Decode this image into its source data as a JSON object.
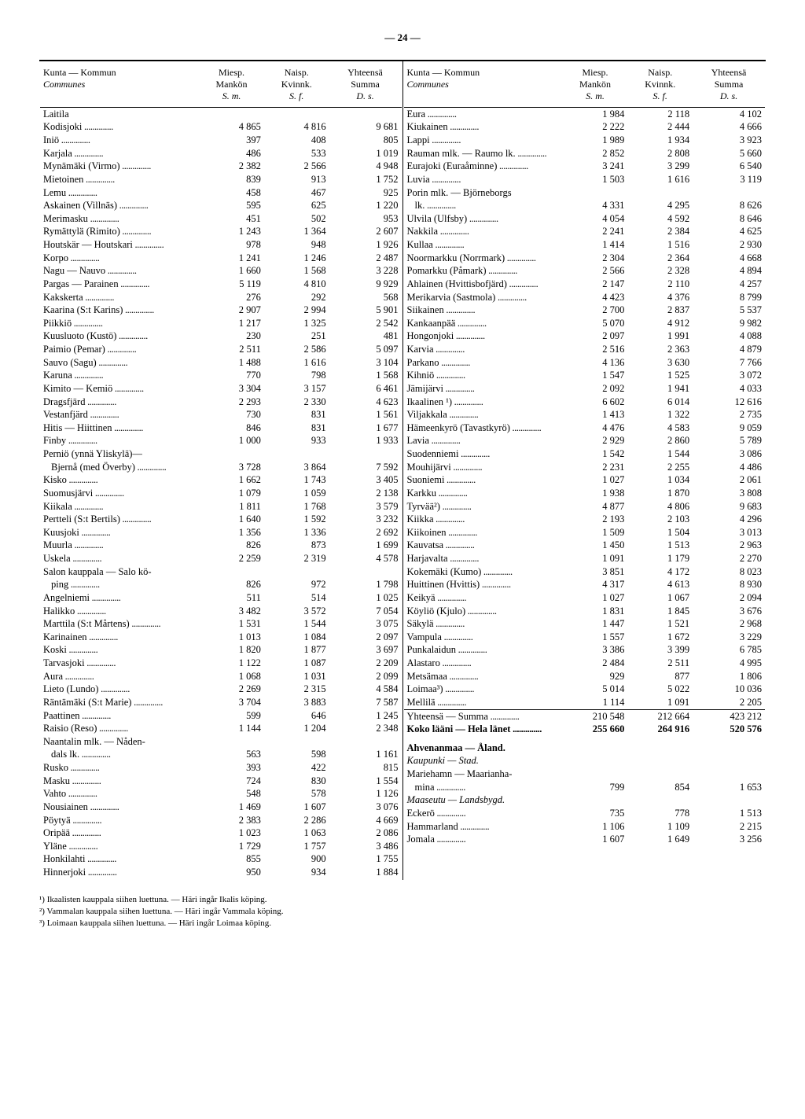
{
  "page_number": "— 24 —",
  "headers": {
    "col1": "Kunta — Kommun",
    "col1_sub": "Communes",
    "col2a": "Miesp.",
    "col2b": "Mankön",
    "col2c": "S. m.",
    "col3a": "Naisp.",
    "col3b": "Kvinnk.",
    "col3c": "S. f.",
    "col4a": "Yhteensä",
    "col4b": "Summa",
    "col4c": "D. s."
  },
  "left_rows": [
    {
      "n": "Laitila",
      "indent": 0,
      "m": "",
      "f": "",
      "t": ""
    },
    {
      "n": "Kodisjoki",
      "indent": 0,
      "m": "4 865",
      "f": "4 816",
      "t": "9 681",
      "brace": true
    },
    {
      "n": "Iniö",
      "indent": 0,
      "m": "397",
      "f": "408",
      "t": "805"
    },
    {
      "n": "Karjala",
      "indent": 0,
      "m": "486",
      "f": "533",
      "t": "1 019"
    },
    {
      "n": "Mynämäki (Virmo)",
      "indent": 0,
      "m": "2 382",
      "f": "2 566",
      "t": "4 948"
    },
    {
      "n": "Mietoinen",
      "indent": 0,
      "m": "839",
      "f": "913",
      "t": "1 752"
    },
    {
      "n": "Lemu",
      "indent": 0,
      "m": "458",
      "f": "467",
      "t": "925"
    },
    {
      "n": "Askainen (Villnäs)",
      "indent": 0,
      "m": "595",
      "f": "625",
      "t": "1 220"
    },
    {
      "n": "Merimasku",
      "indent": 0,
      "m": "451",
      "f": "502",
      "t": "953"
    },
    {
      "n": "Rymättylä (Rimito)",
      "indent": 0,
      "m": "1 243",
      "f": "1 364",
      "t": "2 607"
    },
    {
      "n": "Houtskär — Houtskari",
      "indent": 0,
      "m": "978",
      "f": "948",
      "t": "1 926"
    },
    {
      "n": "Korpo",
      "indent": 0,
      "m": "1 241",
      "f": "1 246",
      "t": "2 487"
    },
    {
      "n": "Nagu — Nauvo",
      "indent": 0,
      "m": "1 660",
      "f": "1 568",
      "t": "3 228"
    },
    {
      "n": "Pargas — Parainen",
      "indent": 0,
      "m": "5 119",
      "f": "4 810",
      "t": "9 929"
    },
    {
      "n": "Kakskerta",
      "indent": 0,
      "m": "276",
      "f": "292",
      "t": "568"
    },
    {
      "n": "Kaarina (S:t Karins)",
      "indent": 0,
      "m": "2 907",
      "f": "2 994",
      "t": "5 901"
    },
    {
      "n": "Piikkiö",
      "indent": 0,
      "m": "1 217",
      "f": "1 325",
      "t": "2 542"
    },
    {
      "n": "Kuusluoto (Kustö)",
      "indent": 0,
      "m": "230",
      "f": "251",
      "t": "481"
    },
    {
      "n": "Paimio (Pemar)",
      "indent": 0,
      "m": "2 511",
      "f": "2 586",
      "t": "5 097"
    },
    {
      "n": "Sauvo (Sagu)",
      "indent": 0,
      "m": "1 488",
      "f": "1 616",
      "t": "3 104"
    },
    {
      "n": "Karuna",
      "indent": 0,
      "m": "770",
      "f": "798",
      "t": "1 568"
    },
    {
      "n": "Kimito — Kemiö",
      "indent": 0,
      "m": "3 304",
      "f": "3 157",
      "t": "6 461"
    },
    {
      "n": "Dragsfjärd",
      "indent": 0,
      "m": "2 293",
      "f": "2 330",
      "t": "4 623"
    },
    {
      "n": "Vestanfjärd",
      "indent": 0,
      "m": "730",
      "f": "831",
      "t": "1 561"
    },
    {
      "n": "Hitis — Hiittinen",
      "indent": 0,
      "m": "846",
      "f": "831",
      "t": "1 677"
    },
    {
      "n": "Finby",
      "indent": 0,
      "m": "1 000",
      "f": "933",
      "t": "1 933"
    },
    {
      "n": "Perniö (ynnä Yliskylä)—",
      "indent": 0,
      "m": "",
      "f": "",
      "t": ""
    },
    {
      "n": "Bjernå (med Överby)",
      "indent": 1,
      "m": "3 728",
      "f": "3 864",
      "t": "7 592"
    },
    {
      "n": "Kisko",
      "indent": 0,
      "m": "1 662",
      "f": "1 743",
      "t": "3 405"
    },
    {
      "n": "Suomusjärvi",
      "indent": 0,
      "m": "1 079",
      "f": "1 059",
      "t": "2 138"
    },
    {
      "n": "Kiikala",
      "indent": 0,
      "m": "1 811",
      "f": "1 768",
      "t": "3 579"
    },
    {
      "n": "Pertteli (S:t Bertils)",
      "indent": 0,
      "m": "1 640",
      "f": "1 592",
      "t": "3 232"
    },
    {
      "n": "Kuusjoki",
      "indent": 0,
      "m": "1 356",
      "f": "1 336",
      "t": "2 692"
    },
    {
      "n": "Muurla",
      "indent": 0,
      "m": "826",
      "f": "873",
      "t": "1 699"
    },
    {
      "n": "Uskela",
      "indent": 0,
      "m": "2 259",
      "f": "2 319",
      "t": "4 578"
    },
    {
      "n": "Salon kauppala — Salo kö-",
      "indent": 0,
      "m": "",
      "f": "",
      "t": ""
    },
    {
      "n": "ping",
      "indent": 1,
      "m": "826",
      "f": "972",
      "t": "1 798"
    },
    {
      "n": "Angelniemi",
      "indent": 0,
      "m": "511",
      "f": "514",
      "t": "1 025"
    },
    {
      "n": "Halikko",
      "indent": 0,
      "m": "3 482",
      "f": "3 572",
      "t": "7 054"
    },
    {
      "n": "Marttila (S:t Mårtens)",
      "indent": 0,
      "m": "1 531",
      "f": "1 544",
      "t": "3 075"
    },
    {
      "n": "Karinainen",
      "indent": 0,
      "m": "1 013",
      "f": "1 084",
      "t": "2 097"
    },
    {
      "n": "Koski",
      "indent": 0,
      "m": "1 820",
      "f": "1 877",
      "t": "3 697"
    },
    {
      "n": "Tarvasjoki",
      "indent": 0,
      "m": "1 122",
      "f": "1 087",
      "t": "2 209"
    },
    {
      "n": "Aura",
      "indent": 0,
      "m": "1 068",
      "f": "1 031",
      "t": "2 099"
    },
    {
      "n": "Lieto (Lundo)",
      "indent": 0,
      "m": "2 269",
      "f": "2 315",
      "t": "4 584"
    },
    {
      "n": "Räntämäki (S:t Marie)",
      "indent": 0,
      "m": "3 704",
      "f": "3 883",
      "t": "7 587"
    },
    {
      "n": "Paattinen",
      "indent": 0,
      "m": "599",
      "f": "646",
      "t": "1 245"
    },
    {
      "n": "Raisio (Reso)",
      "indent": 0,
      "m": "1 144",
      "f": "1 204",
      "t": "2 348"
    },
    {
      "n": "Naantalin mlk. — Nåden-",
      "indent": 0,
      "m": "",
      "f": "",
      "t": ""
    },
    {
      "n": "dals lk.",
      "indent": 1,
      "m": "563",
      "f": "598",
      "t": "1 161"
    },
    {
      "n": "Rusko",
      "indent": 0,
      "m": "393",
      "f": "422",
      "t": "815"
    },
    {
      "n": "Masku",
      "indent": 0,
      "m": "724",
      "f": "830",
      "t": "1 554"
    },
    {
      "n": "Vahto",
      "indent": 0,
      "m": "548",
      "f": "578",
      "t": "1 126"
    },
    {
      "n": "Nousiainen",
      "indent": 0,
      "m": "1 469",
      "f": "1 607",
      "t": "3 076"
    },
    {
      "n": "Pöytyä",
      "indent": 0,
      "m": "2 383",
      "f": "2 286",
      "t": "4 669"
    },
    {
      "n": "Oripää",
      "indent": 0,
      "m": "1 023",
      "f": "1 063",
      "t": "2 086"
    },
    {
      "n": "Yläne",
      "indent": 0,
      "m": "1 729",
      "f": "1 757",
      "t": "3 486"
    },
    {
      "n": "Honkilahti",
      "indent": 0,
      "m": "855",
      "f": "900",
      "t": "1 755"
    },
    {
      "n": "Hinnerjoki",
      "indent": 0,
      "m": "950",
      "f": "934",
      "t": "1 884"
    }
  ],
  "right_rows": [
    {
      "n": "Eura",
      "m": "1 984",
      "f": "2 118",
      "t": "4 102"
    },
    {
      "n": "Kiukainen",
      "m": "2 222",
      "f": "2 444",
      "t": "4 666"
    },
    {
      "n": "Lappi",
      "m": "1 989",
      "f": "1 934",
      "t": "3 923"
    },
    {
      "n": "Rauman mlk. — Raumo lk.",
      "m": "2 852",
      "f": "2 808",
      "t": "5 660"
    },
    {
      "n": "Eurajoki (Euraåminne)",
      "m": "3 241",
      "f": "3 299",
      "t": "6 540"
    },
    {
      "n": "Luvia",
      "m": "1 503",
      "f": "1 616",
      "t": "3 119"
    },
    {
      "n": "Porin mlk. — Björneborgs",
      "m": "",
      "f": "",
      "t": ""
    },
    {
      "n": "lk.",
      "indent": 1,
      "m": "4 331",
      "f": "4 295",
      "t": "8 626"
    },
    {
      "n": "Ulvila (Ulfsby)",
      "m": "4 054",
      "f": "4 592",
      "t": "8 646"
    },
    {
      "n": "Nakkila",
      "m": "2 241",
      "f": "2 384",
      "t": "4 625"
    },
    {
      "n": "Kullaa",
      "m": "1 414",
      "f": "1 516",
      "t": "2 930"
    },
    {
      "n": "Noormarkku (Norrmark)",
      "m": "2 304",
      "f": "2 364",
      "t": "4 668"
    },
    {
      "n": "Pomarkku (Påmark)",
      "m": "2 566",
      "f": "2 328",
      "t": "4 894"
    },
    {
      "n": "Ahlainen (Hvittisbofjärd)",
      "m": "2 147",
      "f": "2 110",
      "t": "4 257"
    },
    {
      "n": "Merikarvia (Sastmola)",
      "m": "4 423",
      "f": "4 376",
      "t": "8 799"
    },
    {
      "n": "Siikainen",
      "m": "2 700",
      "f": "2 837",
      "t": "5 537"
    },
    {
      "n": "Kankaanpää",
      "m": "5 070",
      "f": "4 912",
      "t": "9 982"
    },
    {
      "n": "Hongonjoki",
      "m": "2 097",
      "f": "1 991",
      "t": "4 088"
    },
    {
      "n": "Karvia",
      "m": "2 516",
      "f": "2 363",
      "t": "4 879"
    },
    {
      "n": "Parkano",
      "m": "4 136",
      "f": "3 630",
      "t": "7 766"
    },
    {
      "n": "Kihniö",
      "m": "1 547",
      "f": "1 525",
      "t": "3 072"
    },
    {
      "n": "Jämijärvi",
      "m": "2 092",
      "f": "1 941",
      "t": "4 033"
    },
    {
      "n": "Ikaalinen ¹)",
      "m": "6 602",
      "f": "6 014",
      "t": "12 616"
    },
    {
      "n": "Viljakkala",
      "m": "1 413",
      "f": "1 322",
      "t": "2 735"
    },
    {
      "n": "Hämeenkyrö (Tavastkyrö)",
      "m": "4 476",
      "f": "4 583",
      "t": "9 059"
    },
    {
      "n": "Lavia",
      "m": "2 929",
      "f": "2 860",
      "t": "5 789"
    },
    {
      "n": "Suodenniemi",
      "m": "1 542",
      "f": "1 544",
      "t": "3 086"
    },
    {
      "n": "Mouhijärvi",
      "m": "2 231",
      "f": "2 255",
      "t": "4 486"
    },
    {
      "n": "Suoniemi",
      "m": "1 027",
      "f": "1 034",
      "t": "2 061"
    },
    {
      "n": "Karkku",
      "m": "1 938",
      "f": "1 870",
      "t": "3 808"
    },
    {
      "n": "Tyrvää²)",
      "m": "4 877",
      "f": "4 806",
      "t": "9 683"
    },
    {
      "n": "Kiikka",
      "m": "2 193",
      "f": "2 103",
      "t": "4 296"
    },
    {
      "n": "Kiikoinen",
      "m": "1 509",
      "f": "1 504",
      "t": "3 013"
    },
    {
      "n": "Kauvatsa",
      "m": "1 450",
      "f": "1 513",
      "t": "2 963"
    },
    {
      "n": "Harjavalta",
      "m": "1 091",
      "f": "1 179",
      "t": "2 270"
    },
    {
      "n": "Kokemäki (Kumo)",
      "m": "3 851",
      "f": "4 172",
      "t": "8 023"
    },
    {
      "n": "Huittinen (Hvittis)",
      "m": "4 317",
      "f": "4 613",
      "t": "8 930"
    },
    {
      "n": "Keikyä",
      "m": "1 027",
      "f": "1 067",
      "t": "2 094"
    },
    {
      "n": "Köyliö (Kjulo)",
      "m": "1 831",
      "f": "1 845",
      "t": "3 676"
    },
    {
      "n": "Säkylä",
      "m": "1 447",
      "f": "1 521",
      "t": "2 968"
    },
    {
      "n": "Vampula",
      "m": "1 557",
      "f": "1 672",
      "t": "3 229"
    },
    {
      "n": "Punkalaidun",
      "m": "3 386",
      "f": "3 399",
      "t": "6 785"
    },
    {
      "n": "Alastaro",
      "m": "2 484",
      "f": "2 511",
      "t": "4 995"
    },
    {
      "n": "Metsämaa",
      "m": "929",
      "f": "877",
      "t": "1 806"
    },
    {
      "n": "Loimaa³)",
      "m": "5 014",
      "f": "5 022",
      "t": "10 036"
    },
    {
      "n": "Mellilä",
      "m": "1 114",
      "f": "1 091",
      "t": "2 205"
    }
  ],
  "summary": {
    "sum_label": "Yhteensä — Summa",
    "sum_m": "210 548",
    "sum_f": "212 664",
    "sum_t": "423 212",
    "total_label": "Koko lääni — Hela länet",
    "total_m": "255 660",
    "total_f": "264 916",
    "total_t": "520 576"
  },
  "ahvenanmaa": {
    "title": "Ahvenanmaa — Åland.",
    "kaupunki": "Kaupunki — Stad.",
    "maaseutu": "Maaseutu — Landsbygd.",
    "mariehamn1": "Mariehamn — Maarianha-",
    "mariehamn2": "mina",
    "mariehamn_m": "799",
    "mariehamn_f": "854",
    "mariehamn_t": "1 653",
    "rows": [
      {
        "n": "Eckerö",
        "m": "735",
        "f": "778",
        "t": "1 513"
      },
      {
        "n": "Hammarland",
        "m": "1 106",
        "f": "1 109",
        "t": "2 215"
      },
      {
        "n": "Jomala",
        "m": "1 607",
        "f": "1 649",
        "t": "3 256"
      }
    ]
  },
  "footnotes": [
    "¹) Ikaalisten kauppala siihen luettuna. — Häri ingår Ikalis köping.",
    "²) Vammalan kauppala siihen luettuna. — Häri ingår Vammala köping.",
    "³) Loimaan kauppala siihen luettuna. — Häri ingår Loimaa köping."
  ]
}
